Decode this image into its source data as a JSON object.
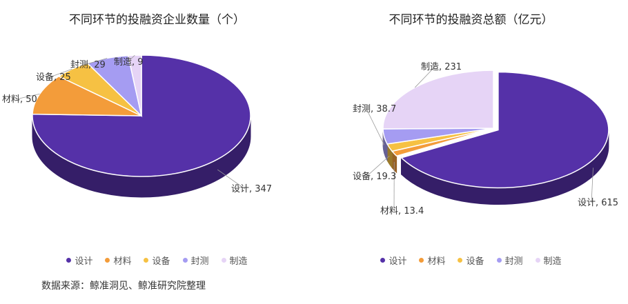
{
  "source": "数据来源：鲸准洞见、鲸准研究院整理",
  "chart_data": [
    {
      "type": "pie",
      "title": "不同环节的投融资企业数量（个）",
      "categories": [
        "设计",
        "材料",
        "设备",
        "封测",
        "制造"
      ],
      "values": [
        347,
        50,
        25,
        29,
        9
      ],
      "colors": [
        "#5531a8",
        "#f39c3a",
        "#f6c143",
        "#a59cf2",
        "#e6d4f6"
      ],
      "labels": [
        "设计, 347",
        "材料, 50",
        "设备, 25",
        "封测, 29",
        "制造, 9"
      ],
      "legend": "bottom"
    },
    {
      "type": "pie",
      "title": "不同环节的投融资总额（亿元）",
      "categories": [
        "设计",
        "材料",
        "设备",
        "封测",
        "制造"
      ],
      "values": [
        615,
        13.4,
        19.3,
        38.7,
        231
      ],
      "colors": [
        "#5531a8",
        "#f39c3a",
        "#f6c143",
        "#a59cf2",
        "#e6d4f6"
      ],
      "labels": [
        "设计, 615",
        "材料, 13.4",
        "设备, 19.3",
        "封测, 38.7",
        "制造, 231"
      ],
      "legend": "bottom"
    }
  ]
}
